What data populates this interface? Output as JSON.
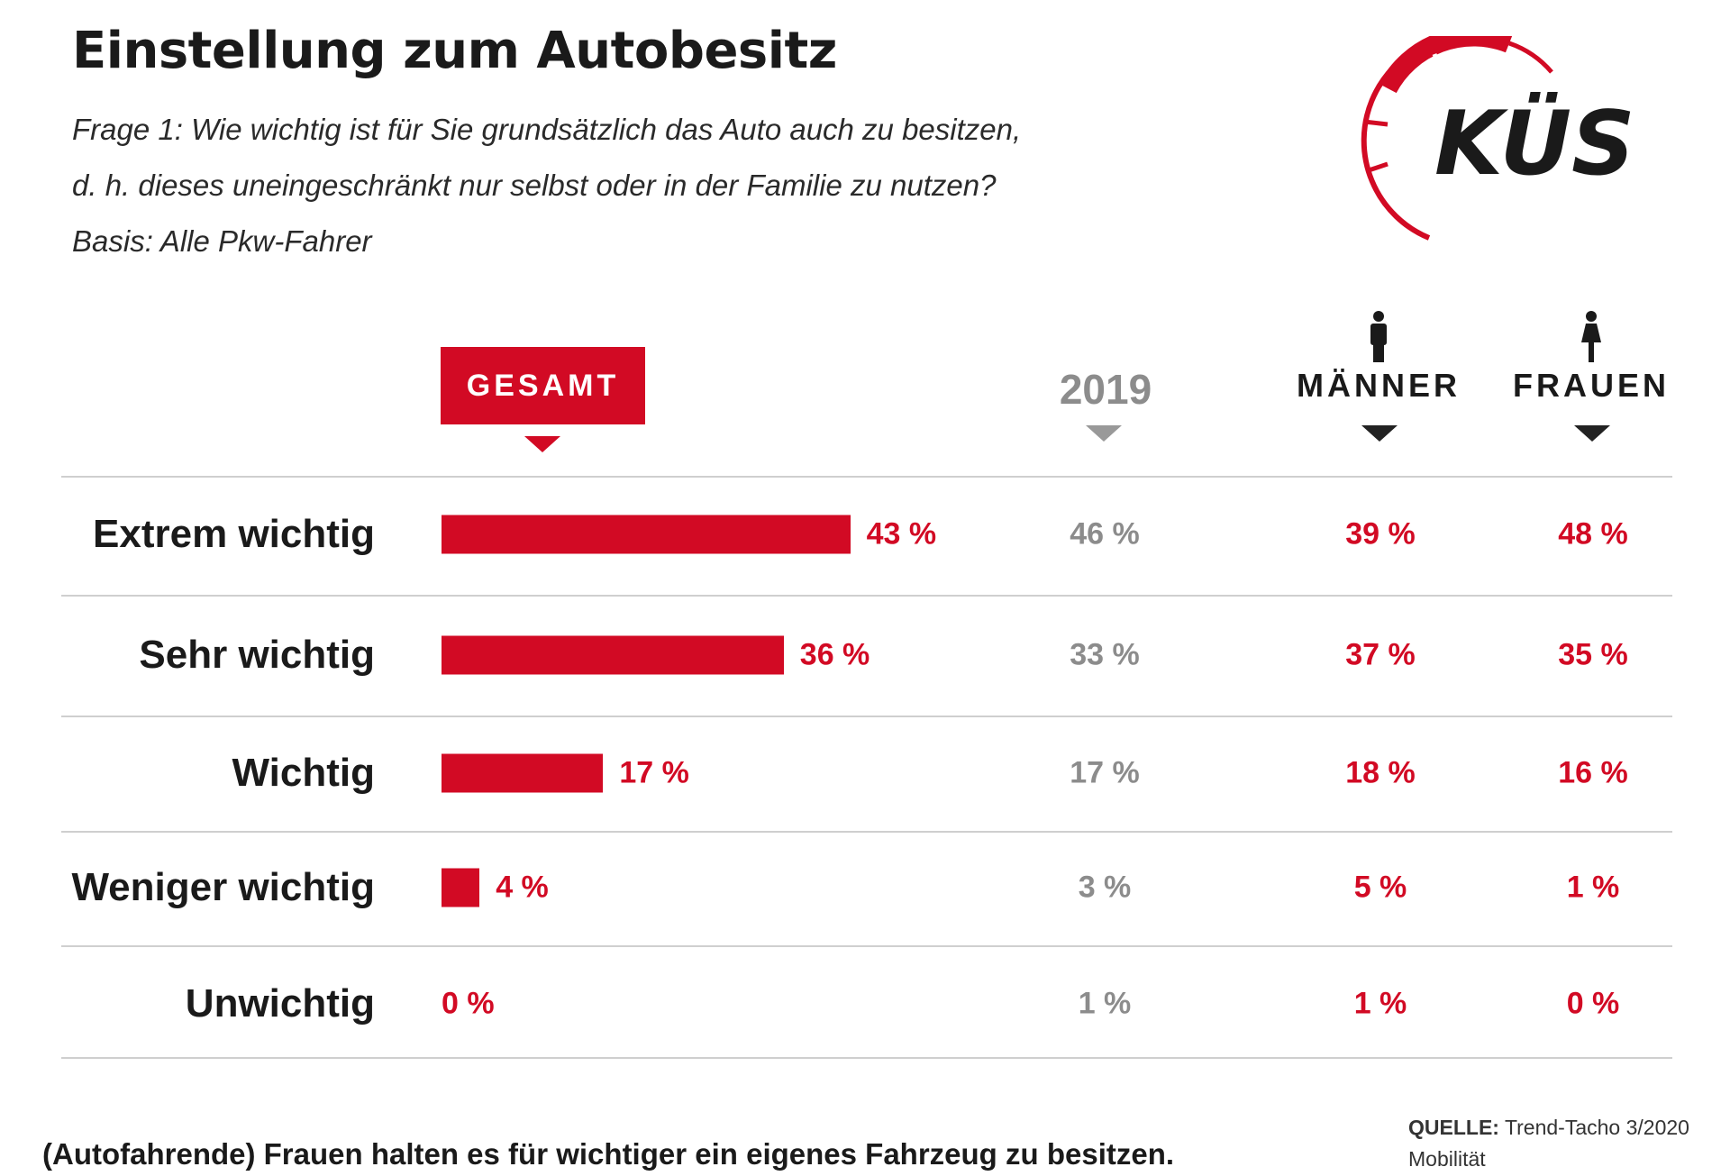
{
  "header": {
    "title": "Einstellung zum Autobesitz",
    "subtitle_lines": [
      "Frage 1: Wie wichtig ist für Sie grundsätzlich das Auto auch zu besitzen,",
      "d. h. dieses uneingeschränkt nur selbst oder in der Familie zu nutzen?",
      "Basis: Alle Pkw-Fahrer"
    ],
    "logo_text": "KÜS"
  },
  "colors": {
    "accent": "#d20a24",
    "previous_year": "#8c8c8c",
    "text": "#1a1a1a"
  },
  "chart_data": {
    "type": "bar",
    "orientation": "horizontal",
    "categories": [
      "Extrem wichtig",
      "Sehr wichtig",
      "Wichtig",
      "Weniger wichtig",
      "Unwichtig"
    ],
    "unit": "%",
    "series": [
      {
        "name": "GESAMT",
        "values": [
          43,
          36,
          17,
          4,
          0
        ],
        "labels": [
          "43 %",
          "36 %",
          "17 %",
          "4 %",
          "0 %"
        ]
      },
      {
        "name": "2019",
        "values": [
          46,
          33,
          17,
          3,
          1
        ],
        "labels": [
          "46 %",
          "33 %",
          "17 %",
          "3 %",
          "1 %"
        ]
      },
      {
        "name": "MÄNNER",
        "values": [
          39,
          37,
          18,
          5,
          1
        ],
        "labels": [
          "39 %",
          "37 %",
          "18 %",
          "5 %",
          "1 %"
        ]
      },
      {
        "name": "FRAUEN",
        "values": [
          48,
          35,
          16,
          1,
          0
        ],
        "labels": [
          "48 %",
          "35 %",
          "16 %",
          "1 %",
          "0 %"
        ]
      }
    ],
    "bars_drawn_for": "GESAMT",
    "xlim": [
      0,
      100
    ],
    "grid": false
  },
  "footer": {
    "note": "(Autofahrende) Frauen halten es für wichtiger ein eigenes Fahrzeug zu besitzen.",
    "source_label": "QUELLE:",
    "source_value": "Trend-Tacho 3/2020",
    "source_line2": "Mobilität"
  }
}
